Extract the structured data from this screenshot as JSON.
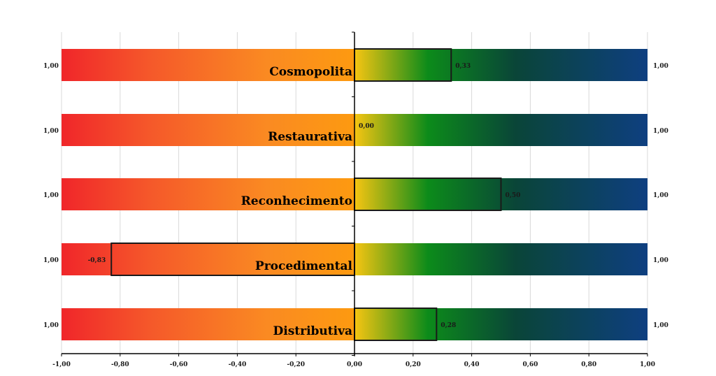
{
  "chart_data": {
    "type": "bar",
    "orientation": "horizontal",
    "categories": [
      "Cosmopolita",
      "Restaurativa",
      "Reconhecimento",
      "Procedimental",
      "Distributiva"
    ],
    "values": [
      0.33,
      0.0,
      0.5,
      -0.83,
      0.28
    ],
    "value_labels": [
      "0,33",
      "0,00",
      "0,50",
      "-0,83",
      "0,28"
    ],
    "left_end_labels": [
      "1,00",
      "1,00",
      "1,00",
      "1,00",
      "1,00"
    ],
    "right_end_labels": [
      "1,00",
      "1,00",
      "1,00",
      "1,00",
      "1,00"
    ],
    "xlim": [
      -1.0,
      1.0
    ],
    "x_ticks": [
      -1.0,
      -0.8,
      -0.6,
      -0.4,
      -0.2,
      0.0,
      0.2,
      0.4,
      0.6,
      0.8,
      1.0
    ],
    "x_tick_labels": [
      "-1,00",
      "-0,80",
      "-0,60",
      "-0,40",
      "-0,20",
      "0,00",
      "0,20",
      "0,40",
      "0,60",
      "0,80",
      "1,00"
    ],
    "grid": true,
    "legend": "none",
    "title": "",
    "xlabel": "",
    "ylabel": "",
    "background_gradient": {
      "negative": [
        "#f0262a",
        "#f5582a",
        "#fa8a22",
        "#fd9a10"
      ],
      "positive": [
        "#f7c512",
        "#0c8b1a",
        "#0a4538",
        "#0e3f80"
      ]
    },
    "bar_outline_color": "#1a1a1a"
  }
}
